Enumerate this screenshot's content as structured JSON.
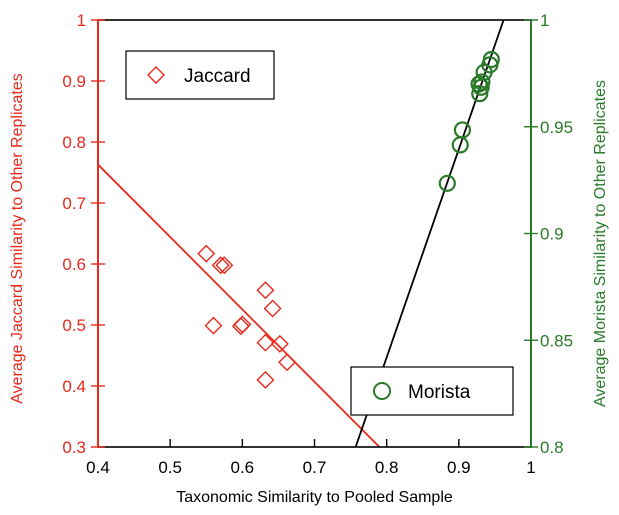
{
  "chart_data": {
    "type": "scatter",
    "xlabel": "Taxonomic Similarity to Pooled Sample",
    "xlim": [
      0.4,
      1.0
    ],
    "x_ticks": [
      "0.4",
      "0.5",
      "0.6",
      "0.7",
      "0.8",
      "0.9",
      "1"
    ],
    "y_left": {
      "label": "Average Jaccard Similarity to Other Replicates",
      "lim": [
        0.3,
        1.0
      ],
      "ticks": [
        "0.3",
        "0.4",
        "0.5",
        "0.6",
        "0.7",
        "0.8",
        "0.9",
        "1"
      ],
      "color": "#e8291c"
    },
    "y_right": {
      "label": "Average Morista Similarity to Other Replicates",
      "lim": [
        0.8,
        1.0
      ],
      "ticks": [
        "0.8",
        "0.85",
        "0.9",
        "0.95",
        "1"
      ],
      "color": "#2a7a2a"
    },
    "series": [
      {
        "name": "Jaccard",
        "axis": "left",
        "marker": "diamond",
        "color": "#e8291c",
        "points": [
          [
            0.55,
            0.617
          ],
          [
            0.57,
            0.598
          ],
          [
            0.575,
            0.598
          ],
          [
            0.56,
            0.499
          ],
          [
            0.598,
            0.498
          ],
          [
            0.6,
            0.501
          ],
          [
            0.632,
            0.557
          ],
          [
            0.642,
            0.527
          ],
          [
            0.632,
            0.471
          ],
          [
            0.652,
            0.469
          ],
          [
            0.662,
            0.439
          ],
          [
            0.632,
            0.41
          ]
        ],
        "fit_line": [
          [
            0.4,
            0.763
          ],
          [
            0.79,
            0.3
          ]
        ]
      },
      {
        "name": "Morista",
        "axis": "right",
        "marker": "circle",
        "color": "#2a7a2a",
        "points": [
          [
            0.884,
            0.9235
          ],
          [
            0.902,
            0.9415
          ],
          [
            0.905,
            0.9485
          ],
          [
            0.929,
            0.9655
          ],
          [
            0.931,
            0.9685
          ],
          [
            0.928,
            0.97
          ],
          [
            0.932,
            0.971
          ],
          [
            0.935,
            0.9755
          ],
          [
            0.943,
            0.979
          ],
          [
            0.945,
            0.9815
          ]
        ],
        "fit_line": [
          [
            0.757,
            0.8
          ],
          [
            0.962,
            1.0
          ]
        ]
      }
    ],
    "fit_line_color": "#000000",
    "legend_jaccard": {
      "label": "Jaccard",
      "placement": "top-left"
    },
    "legend_morista": {
      "label": "Morista",
      "placement": "bottom-right"
    }
  }
}
